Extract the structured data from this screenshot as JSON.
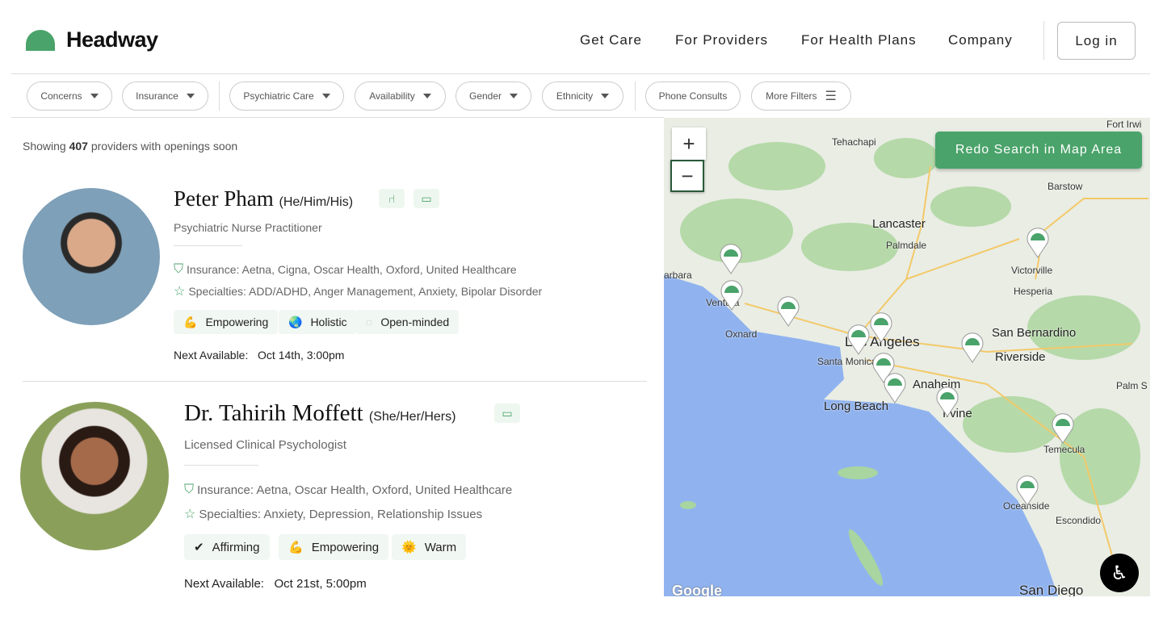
{
  "header": {
    "brand": "Headway",
    "nav": [
      "Get Care",
      "For Providers",
      "For Health Plans",
      "Company"
    ],
    "login": "Log in",
    "brand_color": "#4aa36a"
  },
  "filters": [
    "Concerns",
    "Insurance",
    "Psychiatric Care",
    "Availability",
    "Gender",
    "Ethnicity",
    "Phone Consults",
    "More Filters"
  ],
  "results": {
    "prefix": "Showing ",
    "count": "407",
    "suffix": " providers with openings soon"
  },
  "providers": [
    {
      "name": "Peter Pham",
      "pronouns": "(He/Him/His)",
      "title": "Psychiatric Nurse Practitioner",
      "insurance": "Insurance: Aetna, Cigna, Oscar Health, Oxford, United Healthcare",
      "specialties": "Specialties: ADD/ADHD, Anger Management, Anxiety, Bipolar Disorder",
      "badges": [
        "in-person-chair-icon",
        "video-icon"
      ],
      "tags": [
        {
          "icon": "💪",
          "label": "Empowering"
        },
        {
          "icon": "🌏",
          "label": "Holistic"
        },
        {
          "icon": "◌",
          "label": "Open-minded"
        }
      ],
      "next_label": "Next Available:",
      "next_value": "Oct 14th, 3:00pm"
    },
    {
      "name": "Dr. Tahirih Moffett",
      "pronouns": "(She/Her/Hers)",
      "title": "Licensed Clinical Psychologist",
      "insurance": "Insurance: Aetna, Oscar Health, Oxford, United Healthcare",
      "specialties": "Specialties: Anxiety, Depression, Relationship Issues",
      "badges": [
        "video-icon"
      ],
      "tags": [
        {
          "icon": "✔",
          "label": "Affirming"
        },
        {
          "icon": "💪",
          "label": "Empowering"
        },
        {
          "icon": "🌞",
          "label": "Warm"
        }
      ],
      "next_label": "Next Available:",
      "next_value": "Oct 21st, 5:00pm"
    }
  ],
  "map": {
    "redo": "Redo Search in Map Area",
    "zoom_in": "+",
    "zoom_out": "−",
    "google": "Google",
    "labels": {
      "tehachapi": "Tehachapi",
      "lancaster": "Lancaster",
      "palmdale": "Palmdale",
      "barstow": "Barstow",
      "victorville": "Victorville",
      "hesperia": "Hesperia",
      "san_bernardino": "San Bernardino",
      "riverside": "Riverside",
      "los_angeles": "Los Angeles",
      "santa_monica": "Santa Monica",
      "long_beach": "Long Beach",
      "anaheim": "Anaheim",
      "irvine": "Irvine",
      "oxnard": "Oxnard",
      "ventura": "Ventura",
      "santa_barbara": "arbara",
      "temecula": "Temecula",
      "oceanside": "Oceanside",
      "escondido": "Escondido",
      "san_diego": "San Diego",
      "palm_springs": "Palm S",
      "fort_irwin": "Fort Irwi"
    },
    "ocean_color": "#90b3ef",
    "land_color": "#e9ede4",
    "park_color": "#a8d5a0"
  }
}
